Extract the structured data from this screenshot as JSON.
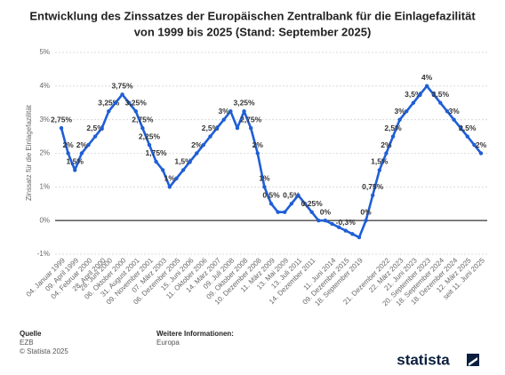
{
  "chart_data": {
    "type": "line",
    "title": "Entwicklung des Zinssatzes der Europäischen Zentralbank für die Einlagefazilität",
    "subtitle": "von 1999 bis 2025 (Stand: September 2025)",
    "y_label": "Zinssatz für die Einlagefazilität",
    "color": "#1f5fd6",
    "grid": true,
    "categories": [
      "04. Januar 1999",
      null,
      "09. April 1999",
      null,
      "04. Februar 2000",
      null,
      "28. April 2000",
      "28. Juni 2000",
      null,
      "06. Oktober 2000",
      null,
      "31. August 2001",
      null,
      "09. November 2001",
      null,
      "07. März 2003",
      null,
      "06. Dezember 2005",
      null,
      "15. Juni 2006",
      null,
      "11. Oktober 2006",
      null,
      "14. März 2007",
      null,
      "09. Juli 2008",
      null,
      "09. Oktober 2008",
      null,
      "10. Dezember 2008",
      null,
      "11. März 2009",
      null,
      "13. Mai 2009",
      null,
      "13. Juli 2011",
      null,
      "14. Dezember 2011",
      null,
      null,
      "11. Juni 2014",
      null,
      "09. Dezember 2015",
      null,
      "18. September 2019",
      null,
      null,
      null,
      "21. Dezember 2022",
      null,
      "22. März 2023",
      null,
      "21. Juni 2023",
      null,
      "20. September 2023",
      null,
      "18. September 2024",
      null,
      "18. Dezember 2024",
      null,
      "12. März 2025",
      null,
      "seit 11. Juni 2025"
    ],
    "values": [
      2.75,
      2,
      1.5,
      2,
      2.25,
      2.5,
      2.75,
      3.25,
      3.5,
      3.75,
      3.5,
      3.25,
      2.75,
      2.25,
      1.75,
      1.5,
      1,
      1.25,
      1.5,
      1.75,
      2,
      2.25,
      2.5,
      2.75,
      3,
      3.25,
      2.75,
      3.25,
      2.75,
      2,
      1,
      0.5,
      0.25,
      0.25,
      0.5,
      0.75,
      0.5,
      0.25,
      0,
      0,
      -0.1,
      -0.2,
      -0.3,
      -0.4,
      -0.5,
      0,
      0.75,
      1.5,
      2,
      2.5,
      3,
      3.25,
      3.5,
      3.75,
      4,
      3.75,
      3.5,
      3.25,
      3,
      2.75,
      2.5,
      2.25,
      2
    ],
    "value_labels": [
      "2,75%",
      "2%",
      "1,5%",
      "2%",
      null,
      "2,5%",
      null,
      "3,25%",
      null,
      "3,75%",
      null,
      "3,25%",
      "2,75%",
      "2,25%",
      "1,75%",
      null,
      "1%",
      null,
      "1,5%",
      null,
      "2%",
      null,
      "2,5%",
      null,
      "3%",
      null,
      null,
      "3,25%",
      "2,75%",
      "2%",
      "1%",
      "0,5%",
      null,
      null,
      "0,5%",
      null,
      null,
      "0,25%",
      null,
      "0%",
      null,
      null,
      "-0,3%",
      null,
      null,
      "0%",
      "0,75%",
      "1,5%",
      "2%",
      "2,5%",
      "3%",
      null,
      "3,5%",
      null,
      "4%",
      null,
      "3,5%",
      null,
      "3%",
      null,
      "2,5%",
      null,
      "2%"
    ],
    "ylim": [
      -1,
      5
    ],
    "yticks": [
      {
        "value": -1,
        "label": "-1%"
      },
      {
        "value": 0,
        "label": "0%"
      },
      {
        "value": 1,
        "label": "1%"
      },
      {
        "value": 2,
        "label": "2%"
      },
      {
        "value": 3,
        "label": "3%"
      },
      {
        "value": 4,
        "label": "4%"
      },
      {
        "value": 5,
        "label": "5%"
      }
    ],
    "source_heading": "Quelle",
    "source": "EZB",
    "copyright": "© Statista 2025",
    "info_heading": "Weitere Informationen:",
    "info": "Europa",
    "logo": "statista"
  }
}
